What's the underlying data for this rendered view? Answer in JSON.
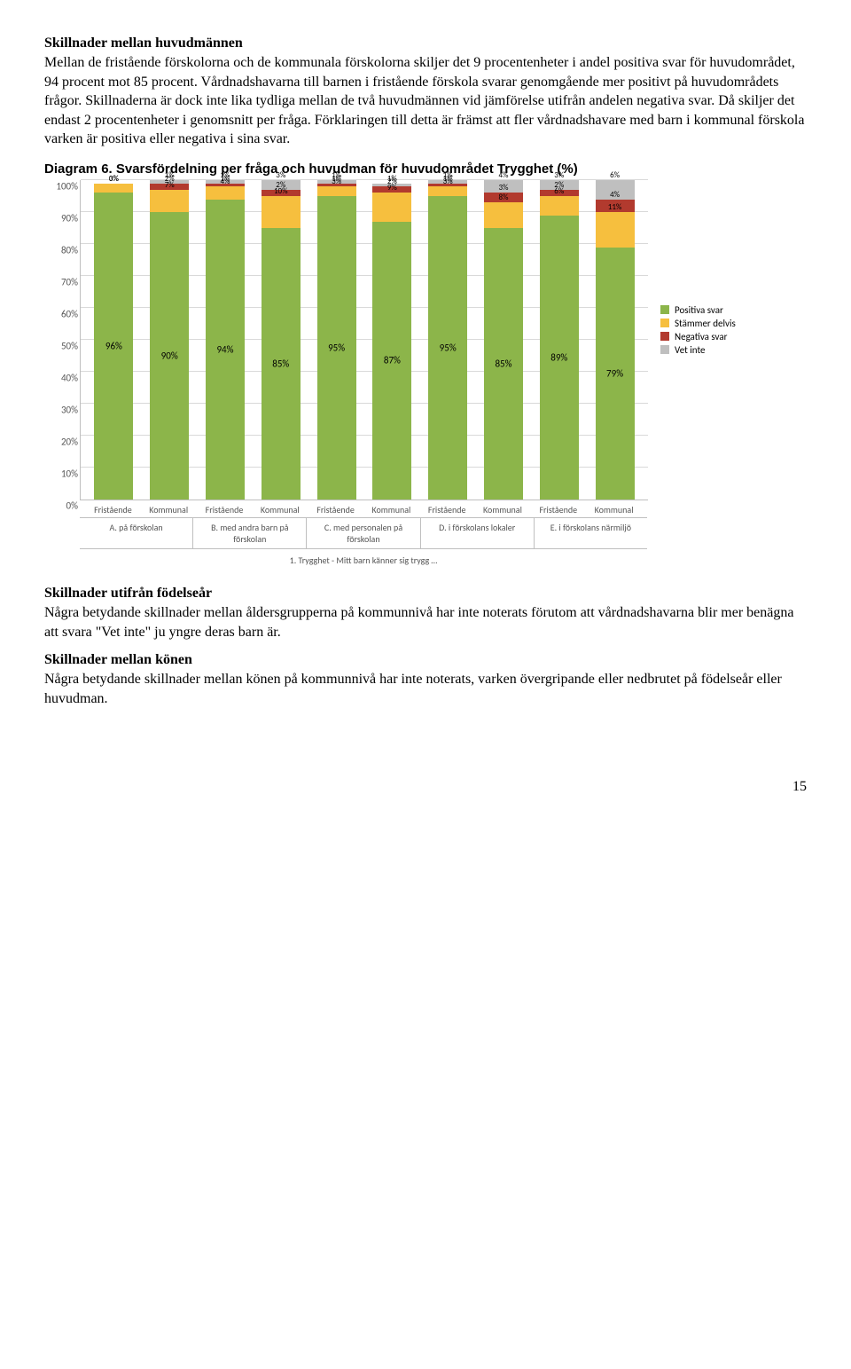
{
  "section1": {
    "heading": "Skillnader mellan huvudmännen",
    "body": "Mellan de fristående förskolorna och de kommunala förskolorna skiljer det 9 procentenheter i andel positiva svar för huvudområdet, 94 procent mot 85 procent. Vårdnadshavarna till barnen i fristående förskola svarar genomgående mer positivt på huvudområdets frågor. Skillnaderna är dock inte lika tydliga mellan de två huvudmännen vid jämförelse utifrån andelen negativa svar. Då skiljer det endast 2 procentenheter i genomsnitt per fråga. Förklaringen till detta är främst att fler vårdnadshavare med barn i kommunal förskola varken är positiva eller negativa i sina svar."
  },
  "chart": {
    "title": "Diagram 6. Svarsfördelning per fråga och huvudman för huvudområdet Trygghet (%)",
    "y_ticks": [
      "0%",
      "10%",
      "20%",
      "30%",
      "40%",
      "50%",
      "60%",
      "70%",
      "80%",
      "90%",
      "100%"
    ],
    "colors": {
      "positiva": "#8cb54a",
      "delvis": "#f6bf3e",
      "negativa": "#b23a2e",
      "vetinte": "#bfbfbf",
      "grid": "#d9d9d9",
      "axis": "#bfbfbf"
    },
    "legend": [
      {
        "label": "Positiva svar",
        "color": "#8cb54a"
      },
      {
        "label": "Stämmer delvis",
        "color": "#f6bf3e"
      },
      {
        "label": "Negativa svar",
        "color": "#b23a2e"
      },
      {
        "label": "Vet inte",
        "color": "#bfbfbf"
      }
    ],
    "bars": [
      {
        "group": "A",
        "sub": "Fristående",
        "positiva": 96,
        "delvis": 3,
        "negativa": 0,
        "vetinte": 0,
        "lbl_p": "96%",
        "lbl_d": "3%",
        "lbl_n": "0%",
        "lbl_v": ""
      },
      {
        "group": "A",
        "sub": "Kommunal",
        "positiva": 90,
        "delvis": 7,
        "negativa": 2,
        "vetinte": 1,
        "lbl_p": "90%",
        "lbl_d": "7%",
        "lbl_n": "2%",
        "lbl_v": "1%"
      },
      {
        "group": "B",
        "sub": "Fristående",
        "positiva": 94,
        "delvis": 4,
        "negativa": 1,
        "vetinte": 1,
        "lbl_p": "94%",
        "lbl_d": "4%",
        "lbl_n": "1%",
        "lbl_v": "1%"
      },
      {
        "group": "B",
        "sub": "Kommunal",
        "positiva": 85,
        "delvis": 10,
        "negativa": 2,
        "vetinte": 3,
        "lbl_p": "85%",
        "lbl_d": "10%",
        "lbl_n": "2%",
        "lbl_v": "3%"
      },
      {
        "group": "C",
        "sub": "Fristående",
        "positiva": 95,
        "delvis": 3,
        "negativa": 1,
        "vetinte": 1,
        "lbl_p": "95%",
        "lbl_d": "3%",
        "lbl_n": "1%",
        "lbl_v": "1%"
      },
      {
        "group": "C",
        "sub": "Kommunal",
        "positiva": 87,
        "delvis": 9,
        "negativa": 2,
        "vetinte": 1,
        "lbl_p": "87%",
        "lbl_d": "9%",
        "lbl_n": "2%",
        "lbl_v": "1%"
      },
      {
        "group": "D",
        "sub": "Fristående",
        "positiva": 95,
        "delvis": 3,
        "negativa": 1,
        "vetinte": 1,
        "lbl_p": "95%",
        "lbl_d": "3%",
        "lbl_n": "1%",
        "lbl_v": "1%"
      },
      {
        "group": "D",
        "sub": "Kommunal",
        "positiva": 85,
        "delvis": 8,
        "negativa": 3,
        "vetinte": 4,
        "lbl_p": "85%",
        "lbl_d": "8%",
        "lbl_n": "3%",
        "lbl_v": "4%"
      },
      {
        "group": "E",
        "sub": "Fristående",
        "positiva": 89,
        "delvis": 6,
        "negativa": 2,
        "vetinte": 3,
        "lbl_p": "89%",
        "lbl_d": "6%",
        "lbl_n": "2%",
        "lbl_v": "3%"
      },
      {
        "group": "E",
        "sub": "Kommunal",
        "positiva": 79,
        "delvis": 11,
        "negativa": 4,
        "vetinte": 6,
        "lbl_p": "79%",
        "lbl_d": "11%",
        "lbl_n": "4%",
        "lbl_v": "6%"
      }
    ],
    "group_labels": [
      "A. på förskolan",
      "B. med andra barn på förskolan",
      "C. med personalen på förskolan",
      "D. i förskolans lokaler",
      "E. i förskolans närmiljö"
    ],
    "super_label": "1. Trygghet - Mitt barn känner sig trygg …"
  },
  "section2": {
    "heading": "Skillnader utifrån födelseår",
    "body": "Några betydande skillnader mellan åldersgrupperna på kommunnivå har inte noterats förutom att vårdnadshavarna blir mer benägna att svara \"Vet inte\" ju yngre deras barn är."
  },
  "section3": {
    "heading": "Skillnader mellan könen",
    "body": "Några betydande skillnader mellan könen på kommunnivå har inte noterats, varken övergripande eller nedbrutet på födelseår eller huvudman."
  },
  "page_number": "15"
}
